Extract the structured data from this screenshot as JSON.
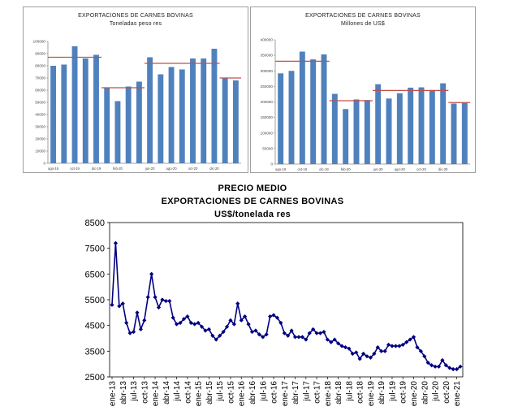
{
  "chart_data": [
    {
      "type": "bar",
      "title": "EXPORTACIONES DE CARNES BOVINAS",
      "subtitle": "Toneladas peso res",
      "ylim": [
        0,
        100000
      ],
      "yticks": [
        0,
        10000,
        20000,
        30000,
        40000,
        50000,
        60000,
        70000,
        80000,
        90000,
        100000
      ],
      "xtick_labels": [
        "ago-19",
        "oct-19",
        "dic-19",
        "feb-20",
        "jun-20",
        "ago-20",
        "oct-20",
        "dic-20"
      ],
      "xtick_index": [
        0,
        2,
        4,
        6,
        9,
        11,
        13,
        15
      ],
      "values": [
        80000,
        81000,
        96000,
        86000,
        89000,
        62000,
        51000,
        63000,
        67000,
        87000,
        73000,
        79000,
        77000,
        86000,
        86000,
        94000,
        70000,
        68000
      ],
      "reference_lines": [
        {
          "start": 0,
          "end": 4,
          "value": 87000
        },
        {
          "start": 5,
          "end": 8,
          "value": 62000
        },
        {
          "start": 9,
          "end": 15,
          "value": 82000
        },
        {
          "start": 16,
          "end": 17,
          "value": 70000
        }
      ],
      "colors": {
        "bar": "#4f81bd",
        "line": "#c0504d"
      }
    },
    {
      "type": "bar",
      "title": "EXPORTACIONES DE CARNES BOVINAS",
      "subtitle": "Millones de US$",
      "ylim": [
        0,
        400000
      ],
      "yticks": [
        0,
        50000,
        100000,
        150000,
        200000,
        250000,
        300000,
        350000,
        400000
      ],
      "xtick_labels": [
        "ago-19",
        "oct-19",
        "dic-19",
        "feb-20",
        "jun-20",
        "ago-20",
        "oct-20",
        "dic-20"
      ],
      "xtick_index": [
        0,
        2,
        4,
        6,
        9,
        11,
        13,
        15
      ],
      "values": [
        292000,
        300000,
        362000,
        337000,
        353000,
        226000,
        177000,
        208000,
        206000,
        257000,
        211000,
        228000,
        246000,
        247000,
        238000,
        260000,
        195000,
        197000
      ],
      "reference_lines": [
        {
          "start": 0,
          "end": 4,
          "value": 331000
        },
        {
          "start": 5,
          "end": 8,
          "value": 204000
        },
        {
          "start": 9,
          "end": 15,
          "value": 237000
        },
        {
          "start": 16,
          "end": 17,
          "value": 198000
        }
      ],
      "colors": {
        "bar": "#4f81bd",
        "line": "#c0504d"
      }
    },
    {
      "type": "line",
      "title": "PRECIO MEDIO",
      "subtitle": "EXPORTACIONES DE CARNES BOVINAS",
      "subtitle2": "US$/tonelada res",
      "ylim": [
        2500,
        8500
      ],
      "yticks": [
        2500,
        3500,
        4500,
        5500,
        6500,
        7500,
        8500
      ],
      "xtick_labels": [
        "ene-13",
        "abr-13",
        "jul-13",
        "oct-13",
        "ene-14",
        "abr-14",
        "jul-14",
        "oct-14",
        "ene-15",
        "abr-15",
        "jul-15",
        "oct-15",
        "ene-16",
        "abr-16",
        "jul-16",
        "oct-16",
        "ene-17",
        "abr-17",
        "jul-17",
        "oct-17",
        "ene-18",
        "abr-18",
        "jul-18",
        "oct-18",
        "ene-19",
        "abr-19",
        "jul-19",
        "oct-19",
        "ene-20",
        "abr-20",
        "jul-20",
        "oct-20",
        "ene-21"
      ],
      "xtick_month_index": [
        0,
        3,
        6,
        9,
        12,
        15,
        18,
        21,
        24,
        27,
        30,
        33,
        36,
        39,
        42,
        45,
        48,
        51,
        54,
        57,
        60,
        63,
        66,
        69,
        72,
        75,
        78,
        81,
        84,
        87,
        90,
        93,
        96
      ],
      "series": [
        {
          "name": "US$/tonelada res",
          "values": [
            5300,
            7700,
            5250,
            5350,
            4600,
            4200,
            4250,
            5000,
            4350,
            4700,
            5600,
            6500,
            5600,
            5200,
            5500,
            5450,
            5450,
            4800,
            4550,
            4600,
            4750,
            4850,
            4600,
            4550,
            4600,
            4450,
            4300,
            4350,
            4100,
            3950,
            4100,
            4250,
            4450,
            4700,
            4550,
            5350,
            4700,
            4850,
            4550,
            4250,
            4300,
            4150,
            4050,
            4150,
            4850,
            4900,
            4800,
            4600,
            4200,
            4100,
            4300,
            4050,
            4050,
            4050,
            3950,
            4200,
            4350,
            4200,
            4200,
            4250,
            3950,
            3850,
            3950,
            3800,
            3700,
            3650,
            3600,
            3400,
            3450,
            3200,
            3400,
            3300,
            3250,
            3400,
            3650,
            3500,
            3500,
            3750,
            3700,
            3700,
            3700,
            3750,
            3850,
            3950,
            4050,
            3650,
            3500,
            3300,
            3050,
            2950,
            2900,
            2900,
            3150,
            2950,
            2850,
            2800,
            2800,
            2900
          ]
        }
      ],
      "colors": {
        "line": "#000080"
      }
    }
  ]
}
